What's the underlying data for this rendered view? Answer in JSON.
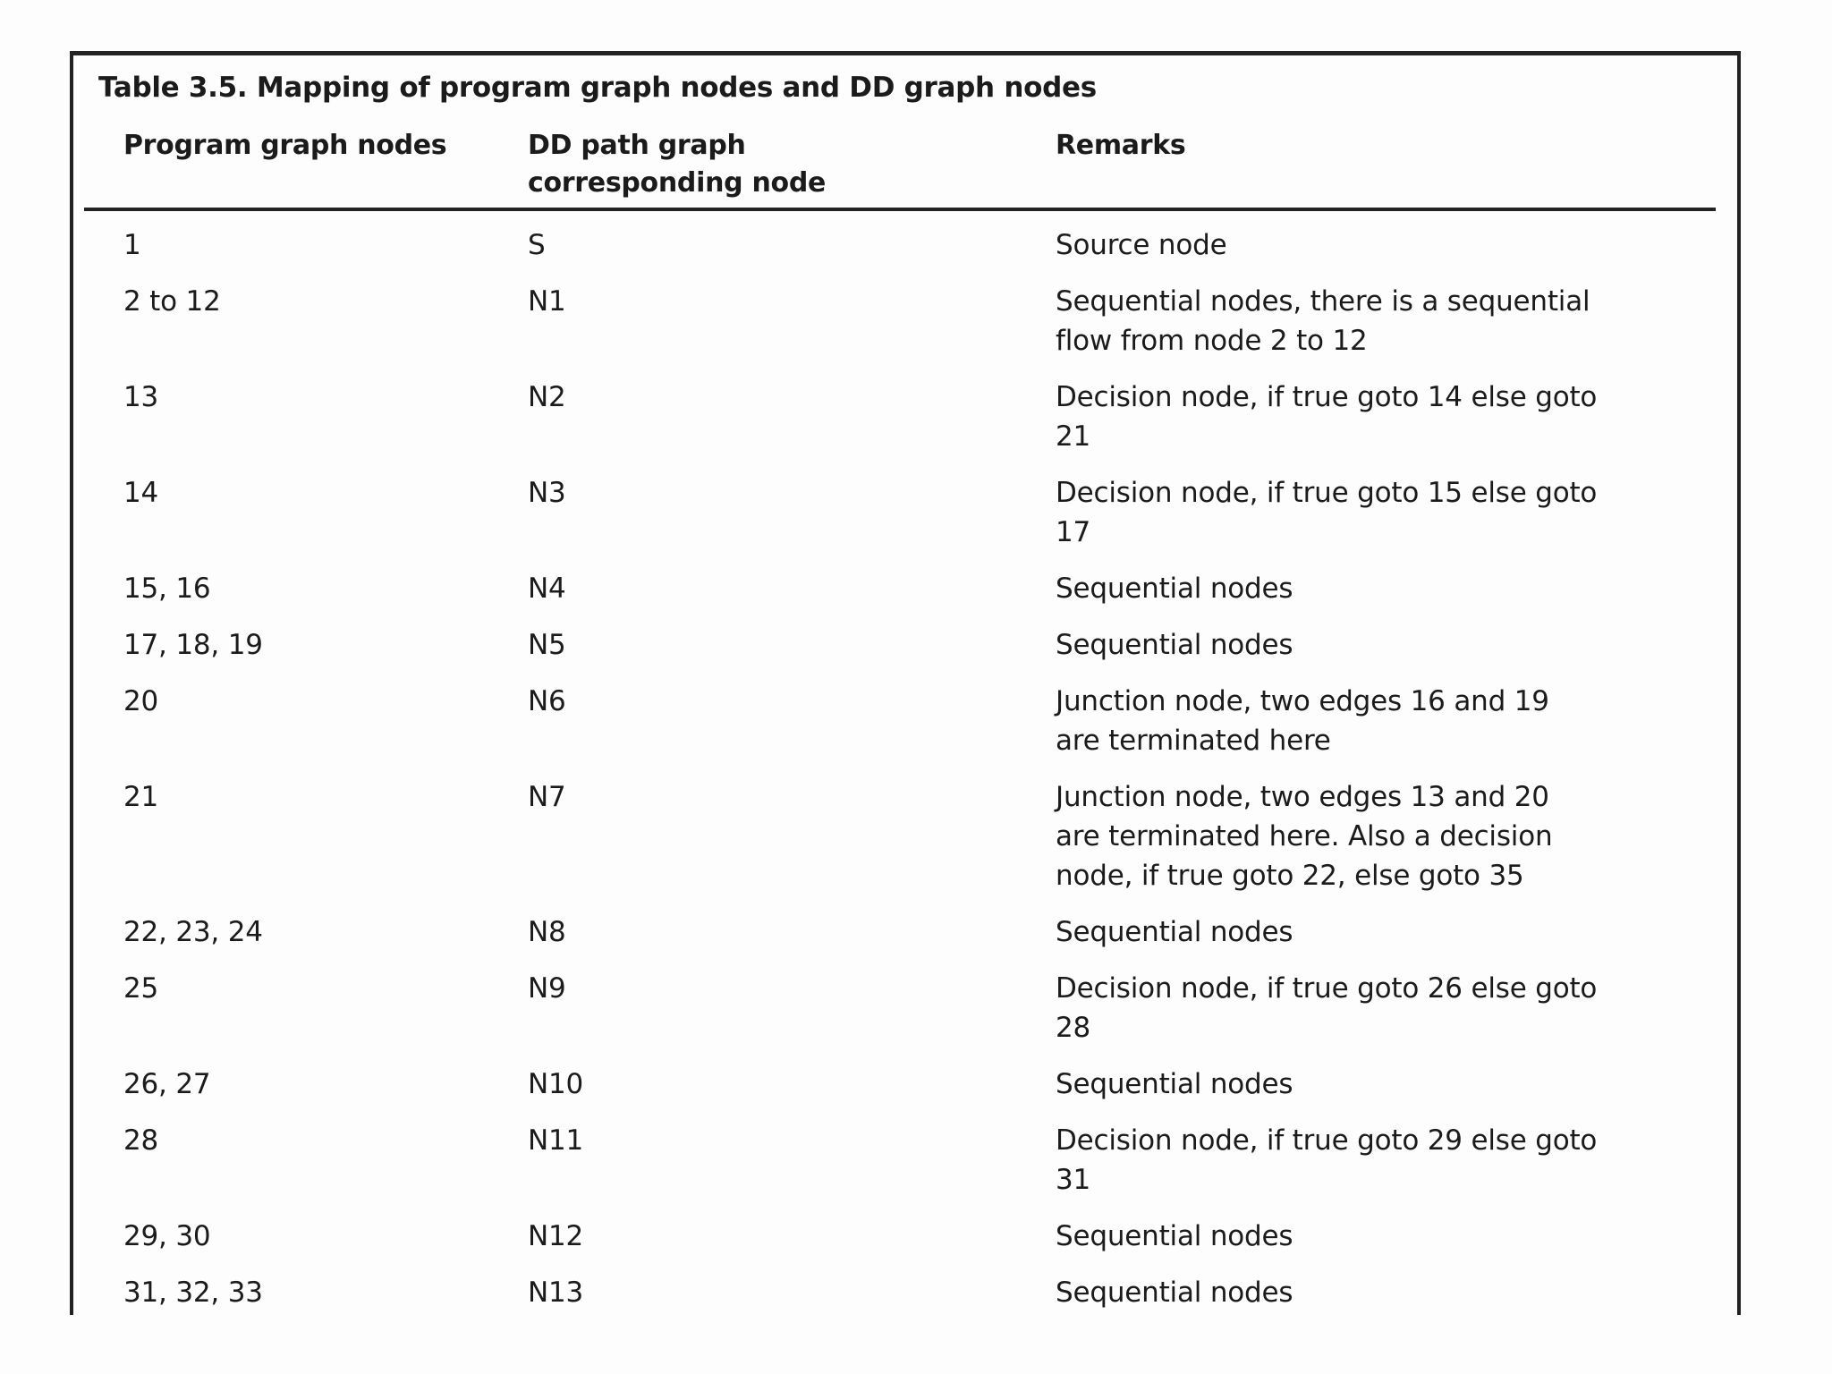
{
  "table": {
    "title": "Table 3.5. Mapping of program graph nodes and DD graph nodes",
    "columns": [
      "Program graph nodes",
      "DD path graph\ncorresponding node",
      "Remarks"
    ],
    "rows": [
      {
        "program": "1",
        "dd": "S",
        "remarks": "Source node"
      },
      {
        "program": "2 to 12",
        "dd": "N1",
        "remarks": "Sequential nodes, there is a sequential\nflow from node 2 to 12"
      },
      {
        "program": "13",
        "dd": "N2",
        "remarks": "Decision node, if true goto 14 else goto\n21"
      },
      {
        "program": "14",
        "dd": "N3",
        "remarks": "Decision node, if true goto 15 else goto\n17"
      },
      {
        "program": "15, 16",
        "dd": "N4",
        "remarks": "Sequential nodes"
      },
      {
        "program": "17, 18, 19",
        "dd": "N5",
        "remarks": "Sequential nodes"
      },
      {
        "program": "20",
        "dd": "N6",
        "remarks": "Junction node, two edges 16 and 19\nare terminated here"
      },
      {
        "program": "21",
        "dd": "N7",
        "remarks": "Junction node, two edges 13 and 20\nare terminated here. Also a decision\nnode, if true goto 22, else goto 35"
      },
      {
        "program": "22, 23, 24",
        "dd": "N8",
        "remarks": "Sequential nodes"
      },
      {
        "program": "25",
        "dd": "N9",
        "remarks": "Decision node, if true goto 26 else goto\n28"
      },
      {
        "program": "26, 27",
        "dd": "N10",
        "remarks": "Sequential nodes"
      },
      {
        "program": "28",
        "dd": "N11",
        "remarks": "Decision node, if true goto 29 else goto\n31"
      },
      {
        "program": "29, 30",
        "dd": "N12",
        "remarks": "Sequential nodes"
      },
      {
        "program": "31, 32, 33",
        "dd": "N13",
        "remarks": "Sequential nodes"
      }
    ]
  }
}
